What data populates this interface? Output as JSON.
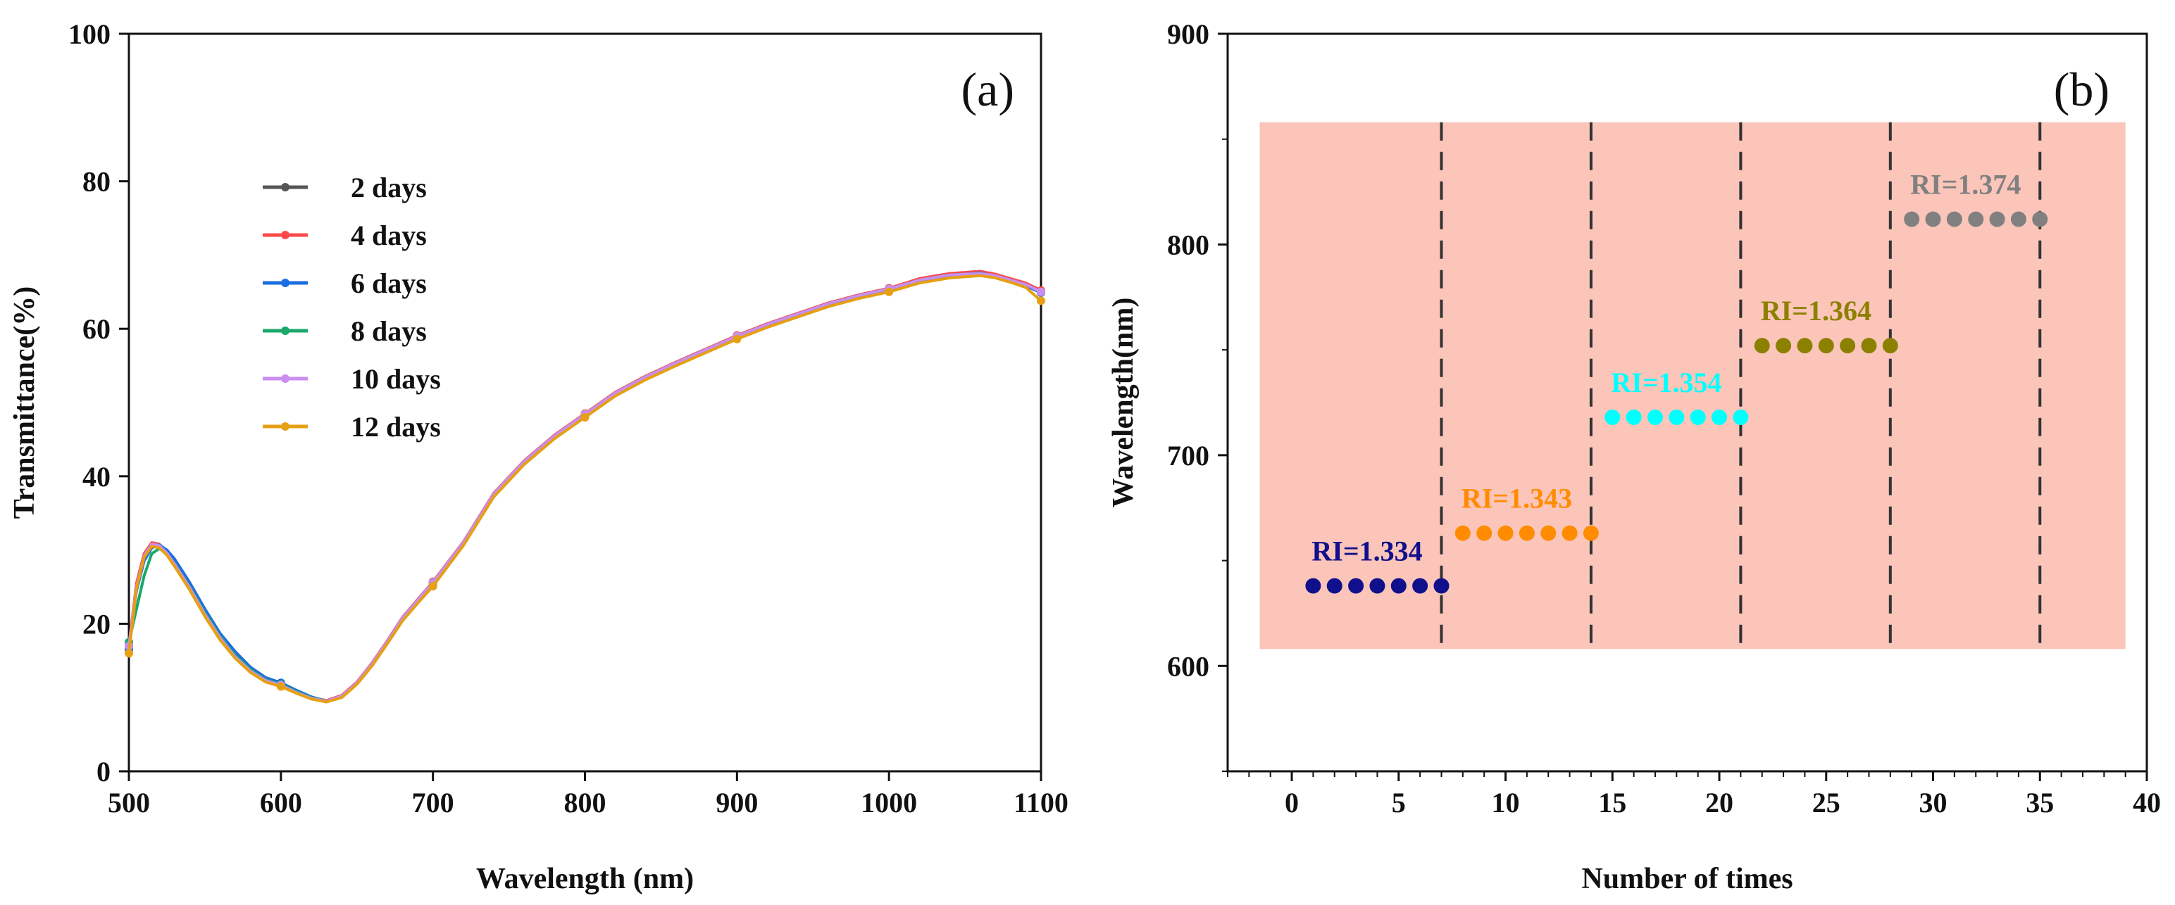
{
  "chart_data": [
    {
      "type": "line",
      "panel": "(a)",
      "xlabel": "Wavelength (nm)",
      "ylabel": "Transmittance(%)",
      "xlim": [
        500,
        1100
      ],
      "ylim": [
        0,
        100
      ],
      "xticks": [
        500,
        600,
        700,
        800,
        900,
        1000,
        1100
      ],
      "yticks": [
        0,
        20,
        40,
        60,
        80,
        100
      ],
      "legend_position": "upper-left",
      "x": [
        500,
        505,
        510,
        515,
        520,
        525,
        530,
        540,
        550,
        560,
        570,
        580,
        590,
        600,
        610,
        620,
        630,
        640,
        650,
        660,
        670,
        680,
        690,
        700,
        720,
        740,
        760,
        780,
        800,
        820,
        840,
        860,
        880,
        900,
        920,
        940,
        960,
        980,
        1000,
        1020,
        1040,
        1060,
        1070,
        1080,
        1090,
        1100
      ],
      "series": [
        {
          "name": "2 days",
          "color": "#555555",
          "values": [
            17,
            25,
            29,
            30.6,
            30.5,
            29.5,
            28,
            24.8,
            21.2,
            18,
            15.5,
            13.6,
            12.3,
            11.7,
            10.7,
            9.9,
            9.5,
            10.2,
            12,
            14.6,
            17.6,
            20.8,
            23.2,
            25.6,
            31,
            37.6,
            42,
            45.5,
            48.4,
            51.3,
            53.5,
            55.4,
            57.2,
            59,
            60.6,
            62,
            63.4,
            64.5,
            65.4,
            66.6,
            67.3,
            67.5,
            67.2,
            66.6,
            66,
            65
          ]
        },
        {
          "name": "4 days",
          "color": "#ff4a4a",
          "values": [
            17,
            25.5,
            29.5,
            31,
            30.8,
            29.7,
            28.2,
            25,
            21.4,
            18.2,
            15.6,
            13.7,
            12.4,
            11.8,
            10.8,
            10,
            9.6,
            10.3,
            12.1,
            14.7,
            17.7,
            20.9,
            23.3,
            25.7,
            31.1,
            37.7,
            42.1,
            45.6,
            48.5,
            51.4,
            53.6,
            55.5,
            57.3,
            59.1,
            60.7,
            62.1,
            63.5,
            64.6,
            65.5,
            66.8,
            67.5,
            67.8,
            67.4,
            66.8,
            66.2,
            65.2
          ]
        },
        {
          "name": "6 days",
          "color": "#1a6ee0",
          "values": [
            16.5,
            24.5,
            28.5,
            30.3,
            30.7,
            30,
            28.8,
            25.6,
            22,
            18.7,
            16.2,
            14.1,
            12.7,
            12,
            11,
            10.1,
            9.5,
            10.1,
            11.9,
            14.4,
            17.4,
            20.5,
            23,
            25.3,
            30.8,
            37.4,
            41.8,
            45.3,
            48.2,
            51.1,
            53.3,
            55.2,
            57,
            58.8,
            60.4,
            61.8,
            63.2,
            64.3,
            65.2,
            66.4,
            67.2,
            67.6,
            67.1,
            66.4,
            65.8,
            64.9
          ]
        },
        {
          "name": "8 days",
          "color": "#1aa86b",
          "values": [
            17.5,
            22,
            26.5,
            29.5,
            30.2,
            29.5,
            28.2,
            25,
            21.5,
            18.3,
            15.7,
            13.8,
            12.4,
            11.8,
            10.8,
            10,
            9.5,
            10.2,
            12,
            14.6,
            17.6,
            20.8,
            23.2,
            25.6,
            31,
            37.6,
            42,
            45.5,
            48.4,
            51.3,
            53.5,
            55.4,
            57.2,
            59,
            60.6,
            62,
            63.4,
            64.5,
            65.4,
            66.6,
            67.3,
            67.5,
            67.2,
            66.6,
            66,
            65
          ]
        },
        {
          "name": "10 days",
          "color": "#c98ef0",
          "values": [
            17,
            25,
            29.2,
            30.8,
            30.6,
            29.6,
            28.1,
            24.9,
            21.3,
            18.1,
            15.5,
            13.6,
            12.3,
            11.7,
            10.7,
            9.9,
            9.5,
            10.2,
            12,
            14.6,
            17.6,
            20.8,
            23.2,
            25.6,
            31,
            37.6,
            42,
            45.5,
            48.4,
            51.3,
            53.5,
            55.4,
            57.2,
            59,
            60.6,
            62,
            63.4,
            64.5,
            65.4,
            66.6,
            67.3,
            67.5,
            67.2,
            66.6,
            66,
            65
          ]
        },
        {
          "name": "12 days",
          "color": "#e6a012",
          "values": [
            16,
            24.8,
            29,
            30.5,
            30.3,
            29.3,
            27.8,
            24.6,
            21,
            17.8,
            15.3,
            13.4,
            12.1,
            11.5,
            10.6,
            9.8,
            9.4,
            10,
            11.8,
            14.3,
            17.3,
            20.4,
            22.8,
            25.1,
            30.6,
            37.2,
            41.6,
            45.1,
            48,
            50.9,
            53.1,
            55,
            56.8,
            58.6,
            60.2,
            61.6,
            63,
            64.1,
            65,
            66.2,
            66.9,
            67.2,
            66.9,
            66.3,
            65.6,
            63.8
          ]
        }
      ],
      "marker_x": [
        500,
        600,
        700,
        800,
        900,
        1000,
        1100
      ]
    },
    {
      "type": "scatter",
      "panel": "(b)",
      "xlabel": "Number of times",
      "ylabel": "Wavelength(nm)",
      "xlim": [
        -3,
        40
      ],
      "ylim": [
        550,
        900
      ],
      "xticks": [
        0,
        5,
        10,
        15,
        20,
        25,
        30,
        35,
        40
      ],
      "yticks": [
        600,
        700,
        800,
        900
      ],
      "shaded_region": {
        "x": [
          -1.5,
          39
        ],
        "y": [
          608,
          858
        ],
        "color": "#fbc5b9"
      },
      "vertical_dashed_lines": [
        7,
        14,
        21,
        28,
        35
      ],
      "series": [
        {
          "name": "RI=1.334",
          "color": "#10108c",
          "x": [
            1,
            2,
            3,
            4,
            5,
            6,
            7
          ],
          "y": [
            638,
            638,
            638,
            638,
            638,
            638,
            638
          ]
        },
        {
          "name": "RI=1.343",
          "color": "#ff8c00",
          "x": [
            8,
            9,
            10,
            11,
            12,
            13,
            14
          ],
          "y": [
            663,
            663,
            663,
            663,
            663,
            663,
            663
          ]
        },
        {
          "name": "RI=1.354",
          "color": "#00ffff",
          "x": [
            15,
            16,
            17,
            18,
            19,
            20,
            21
          ],
          "y": [
            718,
            718,
            718,
            718,
            718,
            718,
            718
          ]
        },
        {
          "name": "RI=1.364",
          "color": "#8c8000",
          "x": [
            22,
            23,
            24,
            25,
            26,
            27,
            28
          ],
          "y": [
            752,
            752,
            752,
            752,
            752,
            752,
            752
          ]
        },
        {
          "name": "RI=1.374",
          "color": "#808080",
          "x": [
            29,
            30,
            31,
            32,
            33,
            34,
            35
          ],
          "y": [
            812,
            812,
            812,
            812,
            812,
            812,
            812
          ]
        }
      ]
    }
  ]
}
